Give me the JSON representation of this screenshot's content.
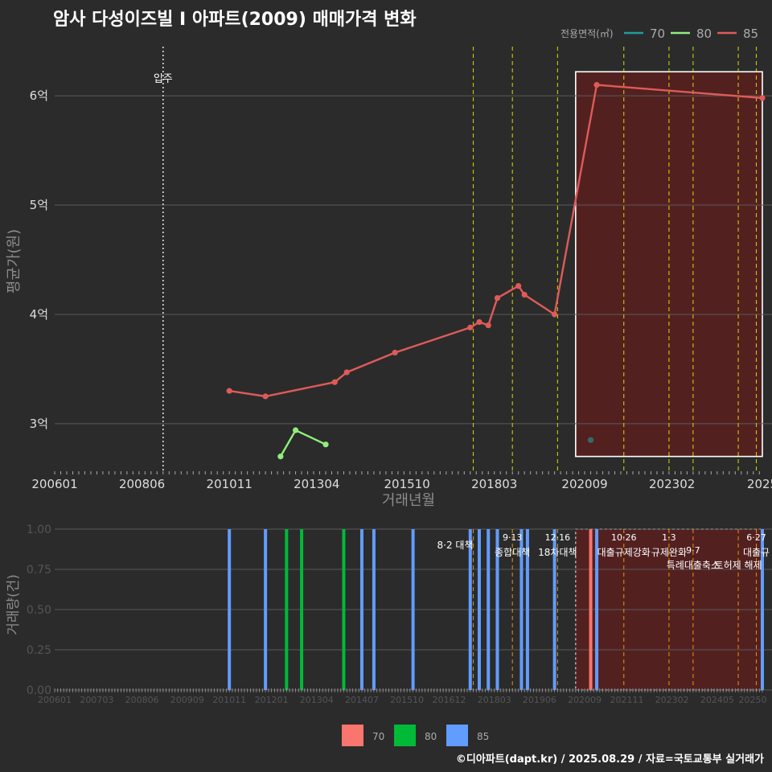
{
  "title": "암사 다성이즈빌 I  아파트(2009) 매매가격 변화",
  "footer": "©디아파트(dapt.kr) / 2025.08.29 / 자료=국토교통부 실거래가",
  "colors": {
    "background": "#2b2b2b",
    "area70": "#1f9e9a",
    "area80": "#90ee7a",
    "area85": "#e05a5a",
    "bar70": "#f8766d",
    "bar80": "#00ba38",
    "bar85": "#619cff",
    "policy_line": "#ffff00",
    "policy_line_lower": "#ffa500"
  },
  "chart_data": [
    {
      "id": "price",
      "type": "line",
      "title": "암사 다성이즈빌 I  아파트(2009) 매매가격 변화",
      "xlabel": "거래년월",
      "ylabel": "평균가(원)",
      "xlim": [
        "2006-01",
        "2025-08"
      ],
      "ylim": [
        2.55,
        6.45
      ],
      "yunit": "억",
      "x_tick_labels": [
        "200601",
        "200806",
        "201011",
        "201304",
        "201510",
        "201803",
        "202009",
        "202302",
        "2025"
      ],
      "y_tick_labels": [
        "3억",
        "4억",
        "5억",
        "6억"
      ],
      "legend_title": "전용면적(㎡)",
      "legend_position": "top-right",
      "legend": [
        {
          "label": "70",
          "color": "#1f9e9a"
        },
        {
          "label": "80",
          "color": "#90ee7a"
        },
        {
          "label": "85",
          "color": "#e05a5a"
        }
      ],
      "annotations": [
        {
          "label": "입주",
          "x": "2009-01"
        }
      ],
      "policy_lines_x": [
        "2017-08",
        "2018-09",
        "2019-12",
        "2021-10",
        "2023-01",
        "2023-09",
        "2024-12",
        "2025-06"
      ],
      "highlight_range_x": [
        "2020-06",
        "2025-08"
      ],
      "series": [
        {
          "name": "70",
          "x": [
            "2020-11"
          ],
          "y": [
            2.85
          ]
        },
        {
          "name": "80",
          "x": [
            "2012-04",
            "2012-09",
            "2013-07"
          ],
          "y": [
            2.7,
            2.94,
            2.81
          ]
        },
        {
          "name": "85",
          "x": [
            "2010-11",
            "2011-11",
            "2013-10",
            "2014-02",
            "2015-06",
            "2017-07",
            "2017-10",
            "2018-01",
            "2018-04",
            "2018-11",
            "2019-01",
            "2019-11",
            "2021-01",
            "2025-08"
          ],
          "y": [
            3.3,
            3.25,
            3.38,
            3.47,
            3.65,
            3.88,
            3.93,
            3.9,
            4.15,
            4.26,
            4.18,
            4.0,
            6.1,
            5.98
          ]
        }
      ]
    },
    {
      "id": "volume",
      "type": "bar",
      "xlabel": "",
      "ylabel": "거래량(건)",
      "xlim": [
        "2006-01",
        "2025-08"
      ],
      "ylim": [
        0,
        1.05
      ],
      "x_tick_labels": [
        "200601",
        "200703",
        "200806",
        "200909",
        "201011",
        "201201",
        "201304",
        "201407",
        "201510",
        "201612",
        "201803",
        "201906",
        "202009",
        "202111",
        "202302",
        "202405",
        "20250"
      ],
      "y_tick_labels": [
        "0.00",
        "0.25",
        "0.50",
        "0.75",
        "1.00"
      ],
      "legend_position": "bottom",
      "legend": [
        {
          "label": "70",
          "color": "#f8766d"
        },
        {
          "label": "80",
          "color": "#00ba38"
        },
        {
          "label": "85",
          "color": "#619cff"
        }
      ],
      "policy_labels": [
        {
          "date": "8·2",
          "text": "대책",
          "x": "2017-08"
        },
        {
          "date": "9·13",
          "text": "종합대책",
          "x": "2018-09"
        },
        {
          "date": "12·16",
          "text": "18차대책",
          "x": "2019-12"
        },
        {
          "date": "10·26",
          "text": "대출규제강화",
          "x": "2021-10"
        },
        {
          "date": "1·3",
          "text": "규제완화",
          "x": "2023-01"
        },
        {
          "date": "9·7",
          "text": "특례대출축소",
          "x": "2023-09"
        },
        {
          "date": "",
          "text": "토허제 해제",
          "x": "2024-12"
        },
        {
          "date": "6·27",
          "text": "대출규",
          "x": "2025-06"
        }
      ],
      "bars": [
        {
          "x": "2010-11",
          "series": "85",
          "value": 1
        },
        {
          "x": "2011-11",
          "series": "85",
          "value": 1
        },
        {
          "x": "2012-06",
          "series": "80",
          "value": 1
        },
        {
          "x": "2012-11",
          "series": "80",
          "value": 1
        },
        {
          "x": "2014-01",
          "series": "80",
          "value": 1
        },
        {
          "x": "2014-07",
          "series": "85",
          "value": 1
        },
        {
          "x": "2014-11",
          "series": "85",
          "value": 1
        },
        {
          "x": "2015-12",
          "series": "85",
          "value": 1
        },
        {
          "x": "2017-07",
          "series": "85",
          "value": 1
        },
        {
          "x": "2017-10",
          "series": "85",
          "value": 1
        },
        {
          "x": "2018-01",
          "series": "85",
          "value": 1
        },
        {
          "x": "2018-04",
          "series": "85",
          "value": 1
        },
        {
          "x": "2018-12",
          "series": "85",
          "value": 1
        },
        {
          "x": "2019-02",
          "series": "85",
          "value": 1
        },
        {
          "x": "2019-11",
          "series": "85",
          "value": 1
        },
        {
          "x": "2020-11",
          "series": "70",
          "value": 1
        },
        {
          "x": "2021-01",
          "series": "85",
          "value": 1
        },
        {
          "x": "2025-08",
          "series": "85",
          "value": 1
        }
      ]
    }
  ]
}
